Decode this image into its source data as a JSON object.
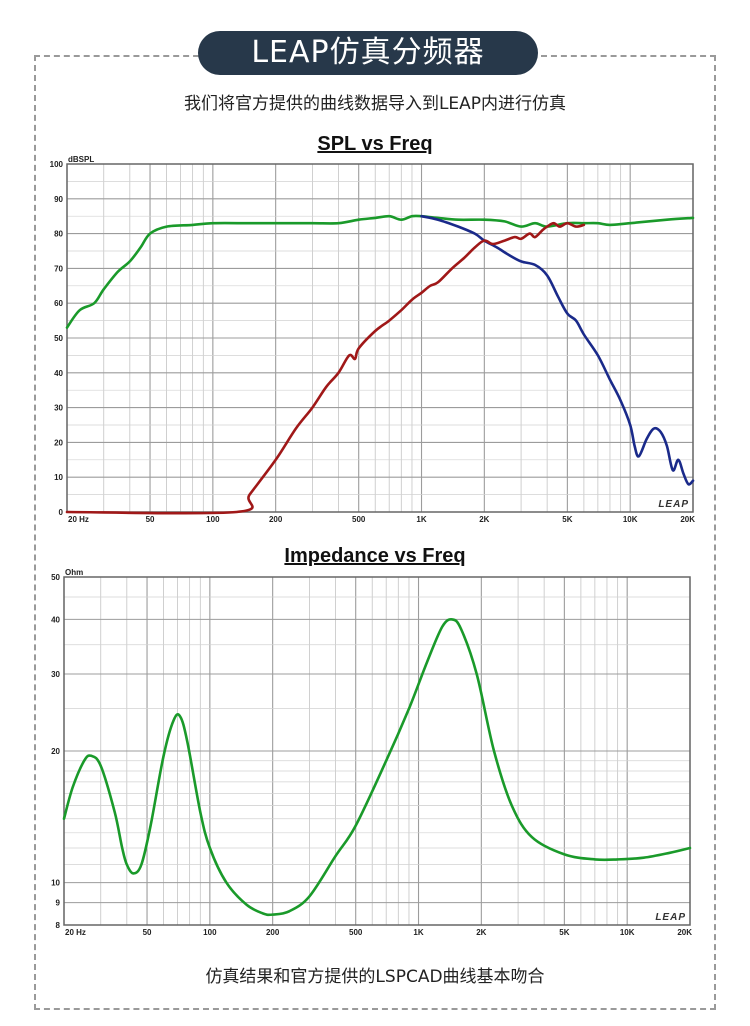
{
  "header": {
    "title": "LEAP仿真分频器",
    "subtitle": "我们将官方提供的曲线数据导入到LEAP内进行仿真"
  },
  "footer": {
    "text": "仿真结果和官方提供的LSPCAD曲线基本吻合"
  },
  "chart_data": [
    {
      "type": "line",
      "title": "SPL vs Freq",
      "ylabel": "dBSPL",
      "xscale": "log",
      "xlim": [
        20,
        20000
      ],
      "ylim": [
        0,
        100
      ],
      "xticks": [
        {
          "v": 20,
          "label": "20 Hz"
        },
        {
          "v": 50,
          "label": "50"
        },
        {
          "v": 100,
          "label": "100"
        },
        {
          "v": 200,
          "label": "200"
        },
        {
          "v": 500,
          "label": "500"
        },
        {
          "v": 1000,
          "label": "1K"
        },
        {
          "v": 2000,
          "label": "2K"
        },
        {
          "v": 5000,
          "label": "5K"
        },
        {
          "v": 10000,
          "label": "10K"
        },
        {
          "v": 20000,
          "label": "20K"
        }
      ],
      "yticks": [
        0,
        10,
        20,
        30,
        40,
        50,
        60,
        70,
        80,
        90,
        100
      ],
      "grid": true,
      "watermark": "LEAP",
      "series": [
        {
          "color": "#1a9a2a",
          "points": [
            [
              20,
              53
            ],
            [
              23,
              58
            ],
            [
              27,
              60
            ],
            [
              30,
              64
            ],
            [
              35,
              69
            ],
            [
              40,
              72
            ],
            [
              45,
              76
            ],
            [
              50,
              80
            ],
            [
              60,
              82
            ],
            [
              80,
              82.5
            ],
            [
              100,
              83
            ],
            [
              150,
              83
            ],
            [
              200,
              83
            ],
            [
              300,
              83
            ],
            [
              400,
              83
            ],
            [
              500,
              84
            ],
            [
              600,
              84.5
            ],
            [
              700,
              85
            ],
            [
              800,
              84
            ],
            [
              900,
              85
            ],
            [
              1000,
              85
            ],
            [
              1200,
              84.5
            ],
            [
              1500,
              84
            ],
            [
              2000,
              84
            ],
            [
              2500,
              83.5
            ],
            [
              3000,
              82
            ],
            [
              3500,
              83
            ],
            [
              4000,
              82
            ],
            [
              5000,
              83
            ],
            [
              6000,
              83
            ],
            [
              7000,
              83
            ],
            [
              8000,
              82.5
            ],
            [
              10000,
              83
            ],
            [
              15000,
              84
            ],
            [
              20000,
              84.5
            ]
          ]
        },
        {
          "color": "#1a2a8a",
          "points": [
            [
              1000,
              85
            ],
            [
              1200,
              84
            ],
            [
              1500,
              82
            ],
            [
              1800,
              80
            ],
            [
              2000,
              78
            ],
            [
              2300,
              76
            ],
            [
              2600,
              74
            ],
            [
              3000,
              72
            ],
            [
              3500,
              71
            ],
            [
              4000,
              68
            ],
            [
              4500,
              62
            ],
            [
              5000,
              57
            ],
            [
              5500,
              55
            ],
            [
              6000,
              51
            ],
            [
              7000,
              45
            ],
            [
              8000,
              38
            ],
            [
              9000,
              32
            ],
            [
              10000,
              25
            ],
            [
              10500,
              19
            ],
            [
              11000,
              16
            ],
            [
              12000,
              21
            ],
            [
              13000,
              24
            ],
            [
              14000,
              23
            ],
            [
              15000,
              19
            ],
            [
              16000,
              12
            ],
            [
              17000,
              15
            ],
            [
              18000,
              11
            ],
            [
              19000,
              8
            ],
            [
              20000,
              9
            ]
          ]
        },
        {
          "color": "#a01818",
          "points": [
            [
              20,
              0
            ],
            [
              130,
              0
            ],
            [
              150,
              5
            ],
            [
              200,
              15
            ],
            [
              250,
              24
            ],
            [
              300,
              30
            ],
            [
              350,
              36
            ],
            [
              400,
              40
            ],
            [
              450,
              45
            ],
            [
              480,
              44
            ],
            [
              500,
              47
            ],
            [
              600,
              52
            ],
            [
              700,
              55
            ],
            [
              800,
              58
            ],
            [
              900,
              61
            ],
            [
              1000,
              63
            ],
            [
              1100,
              65
            ],
            [
              1200,
              66
            ],
            [
              1400,
              70
            ],
            [
              1600,
              73
            ],
            [
              1800,
              76
            ],
            [
              2000,
              78
            ],
            [
              2200,
              77
            ],
            [
              2500,
              78
            ],
            [
              2800,
              79
            ],
            [
              3000,
              78.5
            ],
            [
              3300,
              80
            ],
            [
              3500,
              79
            ],
            [
              3800,
              81
            ],
            [
              4000,
              82
            ],
            [
              4300,
              83
            ],
            [
              4600,
              82
            ],
            [
              5000,
              83
            ],
            [
              5500,
              82
            ],
            [
              6000,
              82.5
            ]
          ]
        }
      ]
    },
    {
      "type": "line",
      "title": "Impedance vs Freq",
      "ylabel": "Ohm",
      "xscale": "log",
      "yscale": "log",
      "xlim": [
        20,
        20000
      ],
      "ylim": [
        8,
        50
      ],
      "xticks": [
        {
          "v": 20,
          "label": "20 Hz"
        },
        {
          "v": 50,
          "label": "50"
        },
        {
          "v": 100,
          "label": "100"
        },
        {
          "v": 200,
          "label": "200"
        },
        {
          "v": 500,
          "label": "500"
        },
        {
          "v": 1000,
          "label": "1K"
        },
        {
          "v": 2000,
          "label": "2K"
        },
        {
          "v": 5000,
          "label": "5K"
        },
        {
          "v": 10000,
          "label": "10K"
        },
        {
          "v": 20000,
          "label": "20K"
        }
      ],
      "yticks": [
        8,
        9,
        10,
        20,
        30,
        40,
        50
      ],
      "grid": true,
      "watermark": "LEAP",
      "series": [
        {
          "color": "#1a9a2a",
          "points": [
            [
              20,
              14
            ],
            [
              22,
              16.5
            ],
            [
              25,
              19
            ],
            [
              27,
              19.5
            ],
            [
              30,
              18.5
            ],
            [
              35,
              14.5
            ],
            [
              38,
              12
            ],
            [
              40,
              11
            ],
            [
              43,
              10.5
            ],
            [
              47,
              11
            ],
            [
              52,
              13.5
            ],
            [
              60,
              19.5
            ],
            [
              67,
              23.5
            ],
            [
              72,
              24
            ],
            [
              78,
              21
            ],
            [
              90,
              14.5
            ],
            [
              100,
              12
            ],
            [
              120,
              10
            ],
            [
              150,
              8.9
            ],
            [
              180,
              8.5
            ],
            [
              200,
              8.45
            ],
            [
              240,
              8.6
            ],
            [
              300,
              9.3
            ],
            [
              400,
              11.5
            ],
            [
              500,
              13.5
            ],
            [
              700,
              19
            ],
            [
              900,
              25
            ],
            [
              1100,
              32
            ],
            [
              1300,
              38.5
            ],
            [
              1450,
              40
            ],
            [
              1600,
              38
            ],
            [
              1900,
              30
            ],
            [
              2300,
              20
            ],
            [
              2800,
              15
            ],
            [
              3500,
              12.7
            ],
            [
              5000,
              11.6
            ],
            [
              7000,
              11.3
            ],
            [
              9000,
              11.3
            ],
            [
              12000,
              11.4
            ],
            [
              16000,
              11.7
            ],
            [
              20000,
              12
            ]
          ]
        }
      ]
    }
  ]
}
